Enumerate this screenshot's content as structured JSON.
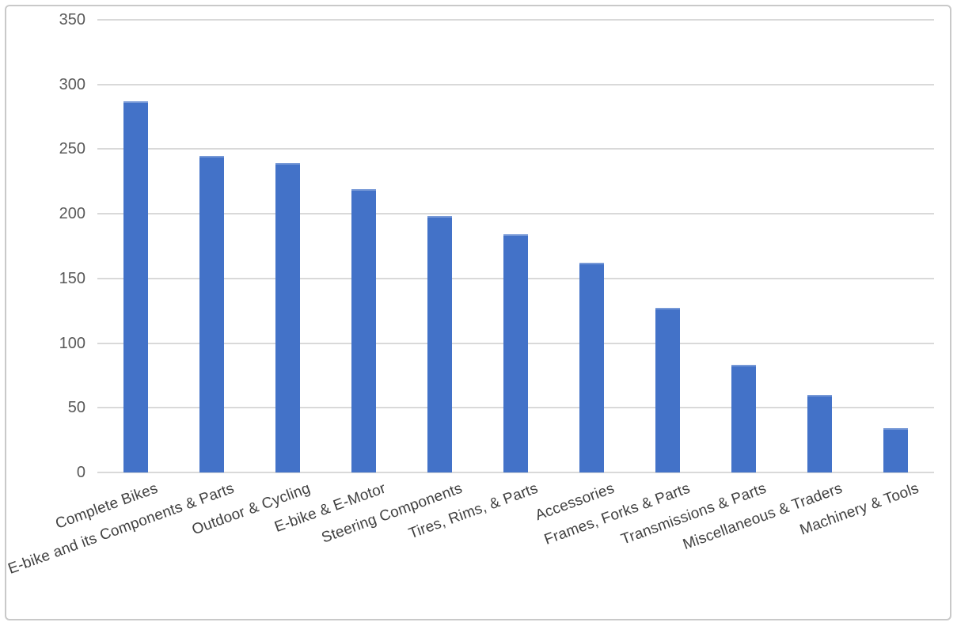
{
  "chart_data": {
    "type": "bar",
    "title": "",
    "xlabel": "",
    "ylabel": "",
    "categories": [
      "Complete Bikes",
      "E-bike and its Components & Parts",
      "Outdoor & Cycling",
      "E-bike & E-Motor",
      "Steering Components",
      "Tires, Rims, & Parts",
      "Accessories",
      "Frames, Forks & Parts",
      "Transmissions & Parts",
      "Miscellaneous & Traders",
      "Machinery & Tools"
    ],
    "values": [
      287,
      245,
      239,
      219,
      198,
      184,
      162,
      127,
      83,
      60,
      34
    ],
    "ylim": [
      0,
      350
    ],
    "yticks": [
      0,
      50,
      100,
      150,
      200,
      250,
      300,
      350
    ],
    "grid": true,
    "legend": null,
    "category_label_rotation_deg": -20,
    "colors": {
      "bar": "#4372c8",
      "gridline": "#d9d9d9",
      "axis_tick_text": "#595959",
      "category_text": "#404040",
      "frame_border": "#c9c9c9",
      "background": "#ffffff"
    }
  }
}
